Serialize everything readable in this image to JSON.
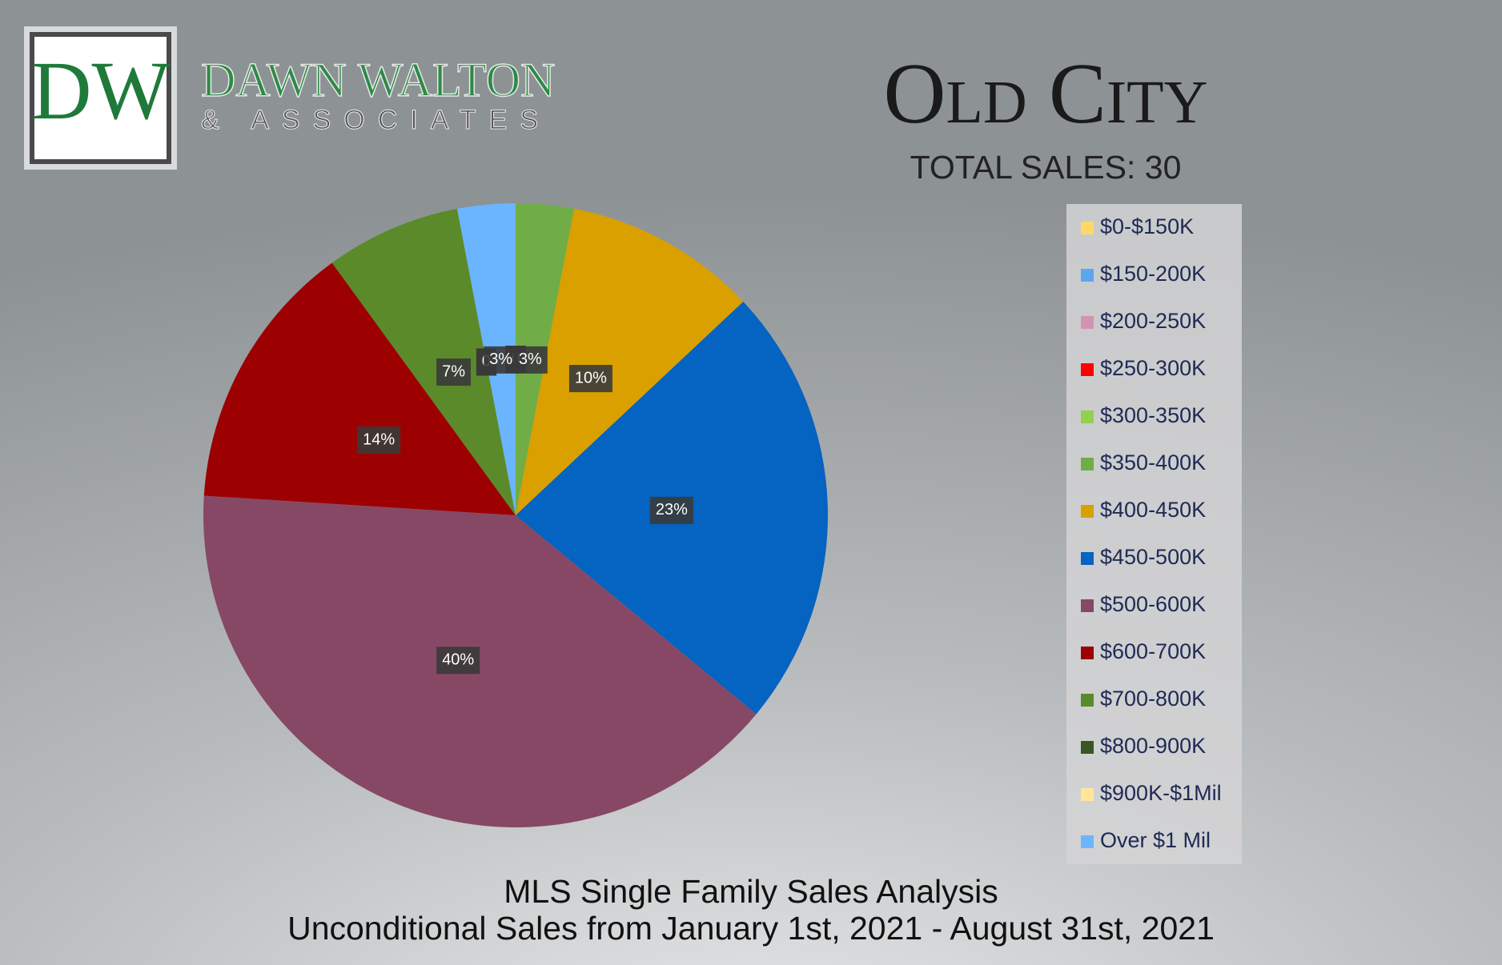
{
  "logo": {
    "initials": "DW",
    "name": "DAWN WALTON",
    "tagline": "& ASSOCIATES"
  },
  "chart_data": {
    "type": "pie",
    "title": "Old City",
    "subtitle": "TOTAL SALES: 30",
    "footer": [
      "MLS Single Family Sales Analysis",
      "Unconditional Sales from January 1st, 2021 - August 31st, 2021"
    ],
    "categories": [
      "$0-$150K",
      "$150-200K",
      "$200-250K",
      "$250-300K",
      "$300-350K",
      "$350-400K",
      "$400-450K",
      "$450-500K",
      "$500-600K",
      "$600-700K",
      "$700-800K",
      "$800-900K",
      "$900K-$1Mil",
      "Over $1 Mil"
    ],
    "values": [
      0,
      0,
      0,
      0,
      0,
      3,
      10,
      23,
      40,
      14,
      7,
      0,
      0,
      3
    ],
    "value_labels": [
      "0",
      "0",
      "0",
      "0",
      "0",
      "3%",
      "10%",
      "23%",
      "40%",
      "14%",
      "7%",
      "0",
      "0",
      "3%"
    ],
    "colors": [
      "#ffd966",
      "#5aa7f0",
      "#d493b3",
      "#ff0000",
      "#92d050",
      "#70ad47",
      "#d9a000",
      "#0563c1",
      "#874865",
      "#9c0000",
      "#5b8a2a",
      "#385723",
      "#ffe699",
      "#6bb5ff"
    ],
    "legend": "right"
  }
}
